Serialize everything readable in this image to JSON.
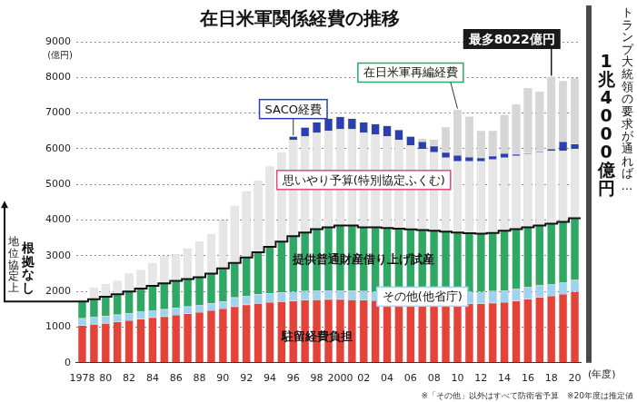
{
  "chart_data": {
    "type": "bar",
    "title": "在日米軍関係経費の推移",
    "stacked": true,
    "grid": true,
    "x_label": "(年度)",
    "y_label": "(億円)",
    "categories": [
      "1978",
      null,
      "80",
      null,
      "82",
      null,
      "84",
      null,
      "86",
      null,
      "88",
      null,
      "90",
      null,
      "92",
      null,
      "94",
      null,
      "96",
      null,
      "98",
      null,
      "2000",
      null,
      "02",
      null,
      "04",
      null,
      "06",
      null,
      "08",
      null,
      "10",
      null,
      "12",
      null,
      "14",
      null,
      "16",
      null,
      "18",
      null,
      "20"
    ],
    "ylim": [
      0,
      9000
    ],
    "yticks": [
      0,
      1000,
      2000,
      3000,
      4000,
      5000,
      6000,
      7000,
      8000,
      9000
    ],
    "series": [
      {
        "name": "駐留経費負担",
        "color": "#e5423a",
        "values": [
          1050,
          1080,
          1110,
          1150,
          1190,
          1230,
          1270,
          1300,
          1340,
          1380,
          1420,
          1470,
          1520,
          1580,
          1630,
          1670,
          1700,
          1720,
          1740,
          1760,
          1770,
          1780,
          1780,
          1770,
          1760,
          1750,
          1740,
          1720,
          1700,
          1690,
          1680,
          1670,
          1660,
          1660,
          1660,
          1680,
          1700,
          1740,
          1790,
          1840,
          1880,
          1930,
          1990
        ]
      },
      {
        "name": "その他(他省庁)",
        "color": "#9dd3ee",
        "values": [
          200,
          200,
          200,
          200,
          200,
          200,
          200,
          200,
          200,
          200,
          200,
          200,
          200,
          250,
          250,
          250,
          250,
          250,
          250,
          250,
          250,
          250,
          250,
          250,
          250,
          250,
          250,
          250,
          330,
          330,
          330,
          330,
          330,
          330,
          330,
          330,
          330,
          330,
          330,
          330,
          330,
          330,
          330
        ]
      },
      {
        "name": "提供普通財産借り上げ試産",
        "color": "#2fa865",
        "values": [
          470,
          500,
          540,
          570,
          610,
          650,
          690,
          730,
          760,
          770,
          780,
          830,
          930,
          970,
          1070,
          1180,
          1300,
          1430,
          1560,
          1640,
          1730,
          1770,
          1820,
          1830,
          1790,
          1800,
          1790,
          1790,
          1710,
          1700,
          1690,
          1680,
          1660,
          1640,
          1630,
          1630,
          1670,
          1680,
          1680,
          1680,
          1690,
          1690,
          1730
        ]
      },
      {
        "name": "思いやり予算(特別協定ふくむ)",
        "color": "#e6e6e6",
        "values": [
          60,
          320,
          350,
          380,
          500,
          520,
          640,
          770,
          750,
          850,
          1000,
          1100,
          1350,
          1600,
          1850,
          2000,
          2250,
          2500,
          2700,
          2700,
          2700,
          2700,
          2700,
          2700,
          2650,
          2600,
          2570,
          2490,
          2360,
          2280,
          2200,
          2070,
          2000,
          2020,
          2030,
          2060,
          2050,
          2050,
          2050,
          2050,
          2050,
          2000,
          1950
        ]
      },
      {
        "name": "SACO経費",
        "color": "#2c3fb0",
        "values": [
          null,
          null,
          null,
          null,
          null,
          null,
          null,
          null,
          null,
          null,
          null,
          null,
          null,
          null,
          null,
          null,
          null,
          null,
          100,
          250,
          300,
          350,
          350,
          300,
          300,
          300,
          300,
          280,
          250,
          200,
          180,
          150,
          170,
          120,
          100,
          100,
          120,
          50,
          30,
          30,
          50,
          250,
          140
        ]
      },
      {
        "name": "在日米軍再編経費",
        "color": "#d6d6d6",
        "values": [
          null,
          null,
          null,
          null,
          null,
          null,
          null,
          null,
          null,
          null,
          null,
          null,
          null,
          null,
          null,
          null,
          null,
          null,
          null,
          null,
          null,
          null,
          null,
          null,
          null,
          null,
          null,
          null,
          null,
          80,
          170,
          700,
          1280,
          1130,
          750,
          700,
          1080,
          1400,
          1820,
          1670,
          2022,
          1700,
          1850
        ]
      }
    ],
    "annotations": {
      "max": "最多8022億円",
      "left_bracket": "地位協定上 根拠なし",
      "right_note": "トランプ大統領の要求が通れば…",
      "right_value": "1兆4000億円"
    },
    "footnote": "※「その他」以外はすべて防衛省予算　※20年度は推定値"
  }
}
